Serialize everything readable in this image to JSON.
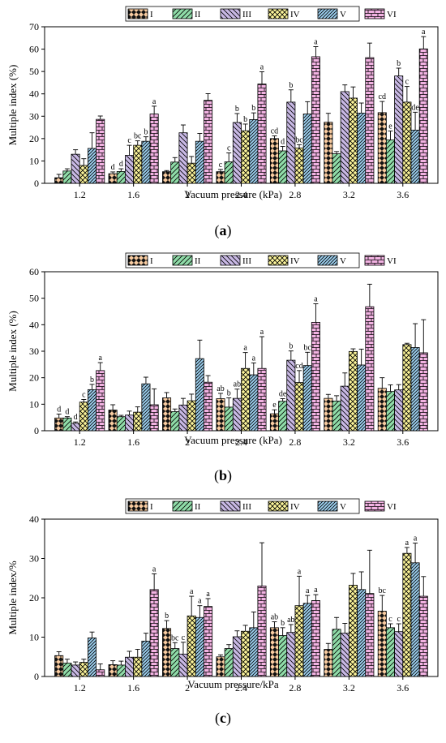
{
  "legend": [
    "I",
    "II",
    "III",
    "IV",
    "V",
    "VI"
  ],
  "style": {
    "fills": [
      "#f8cba0",
      "#8fdca8",
      "#c8b8e4",
      "#fbf49a",
      "#9ccfee",
      "#f2b2e2"
    ],
    "patterns": [
      "diamond",
      "diag-rising",
      "diag-falling",
      "crosshatch",
      "diag-rising-fine",
      "brick"
    ]
  },
  "chart_data": [
    {
      "type": "bar",
      "panel_label": "a",
      "xlabel": "Vacuum pressure (kPa)",
      "ylabel": "Multiple index (%)",
      "ylim": [
        0,
        70
      ],
      "yticks": [
        0,
        10,
        20,
        30,
        40,
        50,
        60,
        70
      ],
      "categories": [
        "1.2",
        "1.6",
        "2",
        "2.4",
        "2.8",
        "3.2",
        "3.6"
      ],
      "series": [
        {
          "name": "I",
          "values": [
            2.5,
            4.3,
            5.2,
            5.2,
            20.0,
            27.3,
            31.6
          ],
          "errors": [
            1.5,
            0.8,
            0.5,
            1.0,
            1.2,
            4.0,
            5.0
          ],
          "letters": [
            "",
            "d",
            "",
            "c",
            "cd",
            "",
            "cd"
          ]
        },
        {
          "name": "II",
          "values": [
            5.5,
            5.3,
            9.5,
            9.6,
            14.5,
            13.2,
            19.4
          ],
          "errors": [
            1.0,
            1.2,
            2.0,
            4.0,
            2.0,
            1.0,
            4.0
          ],
          "letters": [
            "",
            "d",
            "",
            "c",
            "d",
            "",
            "e"
          ]
        },
        {
          "name": "III",
          "values": [
            13.0,
            12.5,
            22.6,
            27.2,
            36.3,
            41.0,
            48.0
          ],
          "errors": [
            2.0,
            4.5,
            3.5,
            4.0,
            5.5,
            3.0,
            3.5
          ],
          "letters": [
            "",
            "c",
            "",
            "b",
            "b",
            "",
            "b"
          ]
        },
        {
          "name": "IV",
          "values": [
            8.0,
            17.0,
            9.0,
            23.5,
            15.8,
            38.1,
            36.3
          ],
          "errors": [
            3.0,
            2.0,
            3.0,
            3.0,
            1.5,
            5.0,
            7.0
          ],
          "letters": [
            "",
            "bc",
            "",
            "b",
            "bc",
            "",
            "c"
          ]
        },
        {
          "name": "V",
          "values": [
            15.6,
            18.8,
            18.8,
            28.5,
            31.0,
            31.4,
            23.8
          ],
          "errors": [
            7.0,
            2.0,
            3.5,
            3.0,
            5.5,
            4.5,
            8.0
          ],
          "letters": [
            "",
            "b",
            "",
            "b",
            "",
            "",
            "de"
          ]
        },
        {
          "name": "VI",
          "values": [
            28.6,
            31.0,
            37.1,
            44.4,
            56.6,
            56.2,
            60.1
          ],
          "errors": [
            1.5,
            3.5,
            3.0,
            5.5,
            4.5,
            6.5,
            5.5
          ],
          "letters": [
            "",
            "a",
            "",
            "a",
            "a",
            "",
            "a"
          ]
        }
      ]
    },
    {
      "type": "bar",
      "panel_label": "b",
      "xlabel": "Vacuum pressure (kPa)",
      "ylabel": "Multiple index (%)",
      "ylim": [
        0,
        60
      ],
      "yticks": [
        0,
        10,
        20,
        30,
        40,
        50,
        60
      ],
      "categories": [
        "1.2",
        "1.6",
        "2",
        "2.4",
        "2.8",
        "3.2",
        "3.6"
      ],
      "series": [
        {
          "name": "I",
          "values": [
            4.8,
            7.8,
            12.4,
            12.1,
            6.4,
            12.2,
            16.0
          ],
          "errors": [
            1.5,
            2.0,
            2.0,
            2.0,
            1.5,
            1.5,
            4.0
          ],
          "letters": [
            "d",
            "",
            "",
            "ab",
            "e",
            "",
            ""
          ]
        },
        {
          "name": "II",
          "values": [
            4.8,
            5.3,
            7.2,
            8.9,
            11.1,
            11.2,
            14.8
          ],
          "errors": [
            0.5,
            0.5,
            1.0,
            3.5,
            1.0,
            2.0,
            2.5
          ],
          "letters": [
            "d",
            "",
            "",
            "b",
            "de",
            "",
            ""
          ]
        },
        {
          "name": "III",
          "values": [
            2.8,
            5.9,
            9.7,
            12.2,
            26.6,
            16.8,
            15.4
          ],
          "errors": [
            0.5,
            1.5,
            2.5,
            3.5,
            3.5,
            5.0,
            2.0
          ],
          "letters": [
            "d",
            "",
            "",
            "ab",
            "b",
            "",
            ""
          ]
        },
        {
          "name": "IV",
          "values": [
            10.8,
            7.0,
            11.3,
            23.5,
            18.2,
            29.9,
            32.5
          ],
          "errors": [
            1.0,
            2.0,
            2.5,
            6.0,
            4.5,
            1.0,
            0.5
          ],
          "letters": [
            "c",
            "",
            "",
            "a",
            "cd",
            "",
            ""
          ]
        },
        {
          "name": "V",
          "values": [
            15.5,
            17.7,
            27.2,
            21.1,
            24.6,
            24.8,
            31.4
          ],
          "errors": [
            2.0,
            2.5,
            7.0,
            4.5,
            5.0,
            6.0,
            9.0
          ],
          "letters": [
            "b",
            "",
            "",
            "a",
            "bc",
            "",
            ""
          ]
        },
        {
          "name": "VI",
          "values": [
            22.7,
            9.8,
            18.3,
            23.5,
            40.9,
            46.8,
            29.4
          ],
          "errors": [
            3.0,
            6.0,
            2.5,
            12.0,
            7.0,
            8.5,
            12.5
          ],
          "letters": [
            "a",
            "",
            "",
            "a",
            "a",
            "",
            ""
          ]
        }
      ]
    },
    {
      "type": "bar",
      "panel_label": "c",
      "xlabel": "Vacuum pressure/kPa",
      "ylabel": "Multiple index/%",
      "ylim": [
        0,
        40
      ],
      "yticks": [
        0,
        10,
        20,
        30,
        40
      ],
      "categories": [
        "1.2",
        "1.6",
        "2",
        "2.4",
        "2.8",
        "3.2",
        "3.6"
      ],
      "series": [
        {
          "name": "I",
          "values": [
            5.3,
            3.0,
            12.2,
            5.0,
            12.4,
            6.9,
            16.6
          ],
          "errors": [
            1.0,
            1.0,
            2.0,
            0.5,
            1.5,
            1.5,
            4.0
          ],
          "letters": [
            "",
            "",
            "b",
            "",
            "ab",
            "",
            "bc"
          ]
        },
        {
          "name": "II",
          "values": [
            3.4,
            2.9,
            7.1,
            7.1,
            10.4,
            12.0,
            12.4
          ],
          "errors": [
            1.0,
            1.0,
            1.5,
            1.0,
            2.0,
            3.0,
            1.0
          ],
          "letters": [
            "",
            "",
            "bc",
            "",
            "b",
            "",
            "c"
          ]
        },
        {
          "name": "III",
          "values": [
            2.9,
            4.9,
            5.7,
            10.1,
            11.2,
            11.0,
            11.4
          ],
          "errors": [
            0.8,
            1.5,
            3.0,
            1.5,
            2.0,
            2.5,
            2.0
          ],
          "letters": [
            "",
            "",
            "c",
            "",
            "ab",
            "",
            "c"
          ]
        },
        {
          "name": "IV",
          "values": [
            3.6,
            4.9,
            15.4,
            11.5,
            18.0,
            23.2,
            31.3
          ],
          "errors": [
            0.8,
            2.0,
            5.0,
            1.5,
            7.5,
            3.0,
            1.5
          ],
          "letters": [
            "",
            "",
            "a",
            "",
            "a",
            "",
            "a"
          ]
        },
        {
          "name": "V",
          "values": [
            9.8,
            9.0,
            15.0,
            12.4,
            18.6,
            22.1,
            28.9
          ],
          "errors": [
            1.5,
            2.0,
            3.0,
            4.0,
            2.0,
            4.5,
            5.0
          ],
          "letters": [
            "",
            "",
            "a",
            "",
            "a",
            "",
            "a"
          ]
        },
        {
          "name": "VI",
          "values": [
            1.7,
            22.1,
            17.8,
            23.0,
            19.3,
            21.1,
            20.4
          ],
          "errors": [
            1.5,
            4.0,
            2.0,
            11.0,
            1.5,
            11.0,
            5.0
          ],
          "letters": [
            "",
            "a",
            "a",
            "",
            "a",
            "",
            ""
          ]
        }
      ]
    }
  ]
}
